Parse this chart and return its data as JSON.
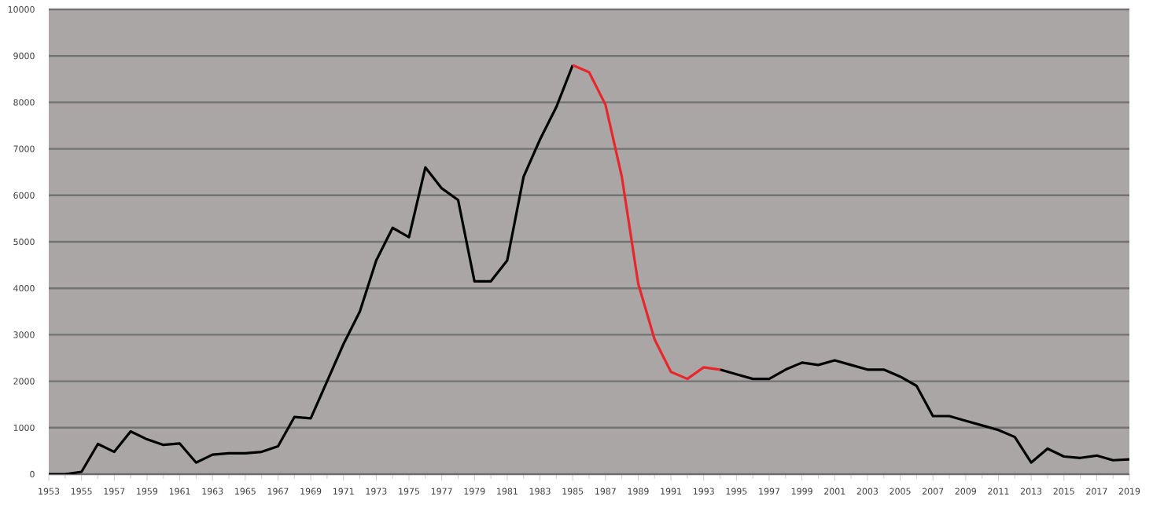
{
  "chart_data": {
    "type": "line",
    "x": [
      1953,
      1954,
      1955,
      1956,
      1957,
      1958,
      1959,
      1960,
      1961,
      1962,
      1963,
      1964,
      1965,
      1966,
      1967,
      1968,
      1969,
      1970,
      1971,
      1972,
      1973,
      1974,
      1975,
      1976,
      1977,
      1978,
      1979,
      1980,
      1981,
      1982,
      1983,
      1984,
      1985,
      1986,
      1987,
      1988,
      1989,
      1990,
      1991,
      1992,
      1993,
      1994,
      1995,
      1996,
      1997,
      1998,
      1999,
      2000,
      2001,
      2002,
      2003,
      2004,
      2005,
      2006,
      2007,
      2008,
      2009,
      2010,
      2011,
      2012,
      2013,
      2014,
      2015,
      2016,
      2017,
      2018,
      2019
    ],
    "series": [
      {
        "color": "#000000",
        "values": [
          0,
          0,
          50,
          650,
          480,
          920,
          750,
          630,
          660,
          250,
          420,
          450,
          450,
          480,
          600,
          1230,
          1200,
          2000,
          2800,
          3500,
          4600,
          5300,
          5100,
          6600,
          6150,
          5900,
          4150,
          4150,
          4600,
          6400,
          7200,
          7900,
          8800,
          null,
          null,
          null,
          null,
          null,
          null,
          null,
          null,
          2250,
          2150,
          2050,
          2050,
          2250,
          2400,
          2350,
          2450,
          2350,
          2250,
          2250,
          2100,
          1900,
          1250,
          1250,
          1150,
          1050,
          950,
          800,
          250,
          550,
          380,
          350,
          400,
          300,
          320
        ]
      },
      {
        "color": "#e8262b",
        "x": [
          1985,
          1986,
          1987,
          1988,
          1989,
          1990,
          1991,
          1992,
          1993,
          1994
        ],
        "values": [
          8800,
          8650,
          7950,
          6400,
          4100,
          2900,
          2200,
          2050,
          2300,
          2250
        ]
      }
    ],
    "xlim": [
      1953,
      2019
    ],
    "xticks": [
      1953,
      1955,
      1957,
      1959,
      1961,
      1963,
      1965,
      1967,
      1969,
      1971,
      1973,
      1975,
      1977,
      1979,
      1981,
      1983,
      1985,
      1987,
      1989,
      1991,
      1993,
      1995,
      1997,
      1999,
      2001,
      2003,
      2005,
      2007,
      2009,
      2011,
      2013,
      2015,
      2017,
      2019
    ],
    "ylim": [
      0,
      10000
    ],
    "yticks": [
      0,
      1000,
      2000,
      3000,
      4000,
      5000,
      6000,
      7000,
      8000,
      9000,
      10000
    ],
    "grid": "y",
    "marker": "none",
    "line_style": "solid"
  }
}
